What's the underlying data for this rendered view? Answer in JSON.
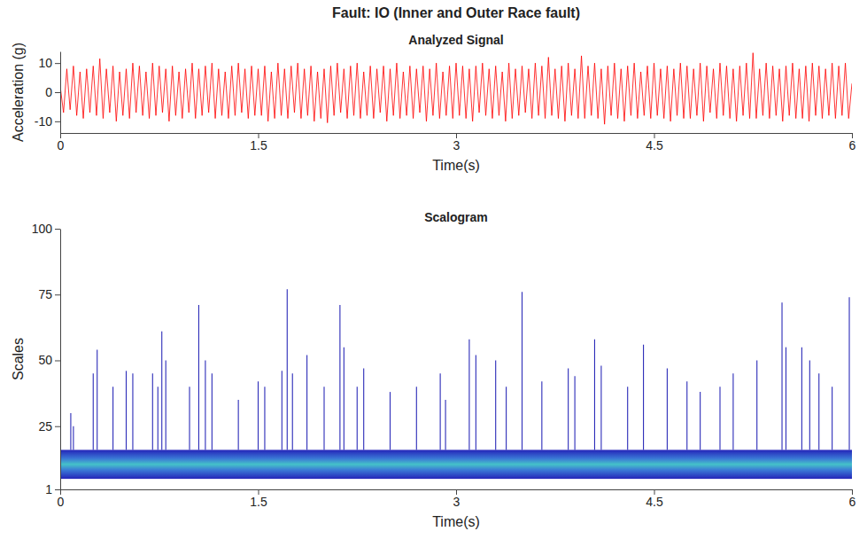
{
  "title": "Fault: IO (Inner and Outer Race fault)",
  "chart_data": [
    {
      "type": "line",
      "title": "Analyzed Signal",
      "x_label": "Time(s)",
      "y_label": "Acceleration (g)",
      "color": "#ff0000",
      "xlim": [
        0,
        6
      ],
      "xticks": [
        0,
        1.5,
        3,
        4.5,
        6
      ],
      "ylim": [
        -14,
        14
      ],
      "yticks": [
        -10,
        0,
        10
      ],
      "x": [
        0,
        0.025,
        0.05,
        0.075,
        0.1,
        0.125,
        0.15,
        0.175,
        0.2,
        0.225,
        0.25,
        0.275,
        0.3,
        0.325,
        0.35,
        0.375,
        0.4,
        0.425,
        0.45,
        0.475,
        0.5,
        0.525,
        0.55,
        0.575,
        0.6,
        0.625,
        0.65,
        0.675,
        0.7,
        0.725,
        0.75,
        0.775,
        0.8,
        0.825,
        0.85,
        0.875,
        0.9,
        0.925,
        0.95,
        0.975,
        1,
        1.025,
        1.05,
        1.075,
        1.1,
        1.125,
        1.15,
        1.175,
        1.2,
        1.225,
        1.25,
        1.275,
        1.3,
        1.325,
        1.35,
        1.375,
        1.4,
        1.425,
        1.45,
        1.475,
        1.5,
        1.525,
        1.55,
        1.575,
        1.6,
        1.625,
        1.65,
        1.675,
        1.7,
        1.725,
        1.75,
        1.775,
        1.8,
        1.825,
        1.85,
        1.875,
        1.9,
        1.925,
        1.95,
        1.975,
        2,
        2.025,
        2.05,
        2.075,
        2.1,
        2.125,
        2.15,
        2.175,
        2.2,
        2.225,
        2.25,
        2.275,
        2.3,
        2.325,
        2.35,
        2.375,
        2.4,
        2.425,
        2.45,
        2.475,
        2.5,
        2.525,
        2.55,
        2.575,
        2.6,
        2.625,
        2.65,
        2.675,
        2.7,
        2.725,
        2.75,
        2.775,
        2.8,
        2.825,
        2.85,
        2.875,
        2.9,
        2.925,
        2.95,
        2.975,
        3,
        3.025,
        3.05,
        3.075,
        3.1,
        3.125,
        3.15,
        3.175,
        3.2,
        3.225,
        3.25,
        3.275,
        3.3,
        3.325,
        3.35,
        3.375,
        3.4,
        3.425,
        3.45,
        3.475,
        3.5,
        3.525,
        3.55,
        3.575,
        3.6,
        3.625,
        3.65,
        3.675,
        3.7,
        3.725,
        3.75,
        3.775,
        3.8,
        3.825,
        3.85,
        3.875,
        3.9,
        3.925,
        3.95,
        3.975,
        4,
        4.025,
        4.05,
        4.075,
        4.1,
        4.125,
        4.15,
        4.175,
        4.2,
        4.225,
        4.25,
        4.275,
        4.3,
        4.325,
        4.35,
        4.375,
        4.4,
        4.425,
        4.45,
        4.475,
        4.5,
        4.525,
        4.55,
        4.575,
        4.6,
        4.625,
        4.65,
        4.675,
        4.7,
        4.725,
        4.75,
        4.775,
        4.8,
        4.825,
        4.85,
        4.875,
        4.9,
        4.925,
        4.95,
        4.975,
        5,
        5.025,
        5.05,
        5.075,
        5.1,
        5.125,
        5.15,
        5.175,
        5.2,
        5.225,
        5.25,
        5.275,
        5.3,
        5.325,
        5.35,
        5.375,
        5.4,
        5.425,
        5.45,
        5.475,
        5.5,
        5.525,
        5.55,
        5.575,
        5.6,
        5.625,
        5.65,
        5.675,
        5.7,
        5.725,
        5.75,
        5.775,
        5.8,
        5.825,
        5.85,
        5.875,
        5.9,
        5.925,
        5.95,
        5.975,
        6
      ],
      "values": [
        2,
        -7,
        8,
        -6,
        9,
        -8,
        7,
        -9,
        8,
        -7,
        9,
        -8,
        11.5,
        -9,
        8,
        -7,
        9,
        -10,
        7,
        -8,
        8,
        -9,
        10,
        -7,
        9,
        -8,
        7,
        -9,
        10,
        -8,
        9,
        -7,
        8,
        -10,
        9,
        -8,
        7,
        -9,
        8,
        -7,
        10,
        -9,
        8,
        -8,
        9,
        -7,
        10,
        -9,
        8,
        -8,
        7,
        -9,
        9,
        -8,
        10,
        -7,
        8,
        -9,
        9,
        -8,
        8,
        -8,
        9,
        -10,
        7,
        -9,
        10,
        -8,
        8,
        -9,
        9,
        -7,
        10,
        -9,
        8,
        -8,
        9,
        -10,
        7,
        -9,
        8,
        -10.5,
        9,
        -8,
        10,
        -7,
        8,
        -9,
        9,
        -8,
        10,
        -9,
        7,
        -8,
        9,
        -9,
        8,
        -7,
        9,
        -10,
        8,
        -8,
        10,
        -9,
        7,
        -8,
        9,
        -9,
        8,
        -7,
        9,
        -10,
        8,
        -8,
        10,
        -9,
        7,
        -8,
        9,
        -9,
        10,
        -8,
        9,
        -9,
        8,
        -10,
        9,
        -7,
        10,
        -8,
        8,
        -9,
        9,
        -8,
        7,
        -10,
        10,
        -9,
        8,
        -8,
        9,
        -7,
        8,
        -9,
        10,
        -8,
        9,
        -9,
        12,
        -8,
        8,
        -9,
        9,
        -10,
        10,
        -8,
        8,
        -9,
        12.5,
        -9,
        9,
        -8,
        10,
        -9,
        8,
        -11,
        9,
        -8,
        10,
        -9,
        8,
        -10,
        9,
        -8,
        10,
        -9,
        7,
        -8,
        9,
        -9,
        10,
        -8,
        8,
        -9,
        9,
        -10,
        8,
        -8,
        10,
        -9,
        9,
        -9,
        8,
        -8,
        10,
        -10,
        9,
        -7,
        8,
        -9,
        10,
        -8,
        9,
        -9,
        8,
        -10,
        9,
        -8,
        10,
        -9,
        13.5,
        -9,
        8,
        -8,
        10,
        -9,
        9,
        -8,
        8,
        -10,
        9,
        -8,
        10,
        -9,
        8,
        -9,
        9,
        -10,
        10,
        -8,
        9,
        -9,
        8,
        -8,
        10,
        -9,
        9,
        -8,
        10,
        -9,
        3
      ]
    },
    {
      "type": "scalogram",
      "title": "Scalogram",
      "x_label": "Time(s)",
      "y_label": "Scales",
      "color": "#2b2bb8",
      "xlim": [
        0,
        6
      ],
      "xticks": [
        0,
        1.5,
        3,
        4.5,
        6
      ],
      "ylim": [
        1,
        100
      ],
      "yticks": [
        1,
        25,
        50,
        75,
        100
      ],
      "band": [
        5,
        16
      ],
      "x": [
        0.08,
        0.1,
        0.25,
        0.28,
        0.4,
        0.5,
        0.55,
        0.7,
        0.74,
        0.77,
        0.8,
        0.98,
        1.05,
        1.1,
        1.15,
        1.35,
        1.5,
        1.55,
        1.68,
        1.72,
        1.76,
        1.87,
        2,
        2.12,
        2.15,
        2.25,
        2.3,
        2.5,
        2.7,
        2.88,
        2.92,
        3.1,
        3.15,
        3.3,
        3.38,
        3.5,
        3.65,
        3.85,
        3.9,
        4.05,
        4.1,
        4.3,
        4.42,
        4.6,
        4.75,
        4.85,
        5,
        5.1,
        5.28,
        5.47,
        5.5,
        5.62,
        5.68,
        5.75,
        5.85,
        5.98
      ],
      "values": [
        30,
        25,
        45,
        54,
        40,
        46,
        45,
        45,
        40,
        61,
        50,
        40,
        71,
        50,
        45,
        35,
        42,
        40,
        46,
        77,
        45,
        52,
        40,
        71,
        55,
        40,
        47,
        38,
        40,
        45,
        35,
        58,
        52,
        50,
        40,
        76,
        42,
        47,
        44,
        58,
        48,
        40,
        56,
        47,
        42,
        38,
        40,
        45,
        50,
        72,
        55,
        55,
        50,
        45,
        40,
        74
      ]
    }
  ]
}
